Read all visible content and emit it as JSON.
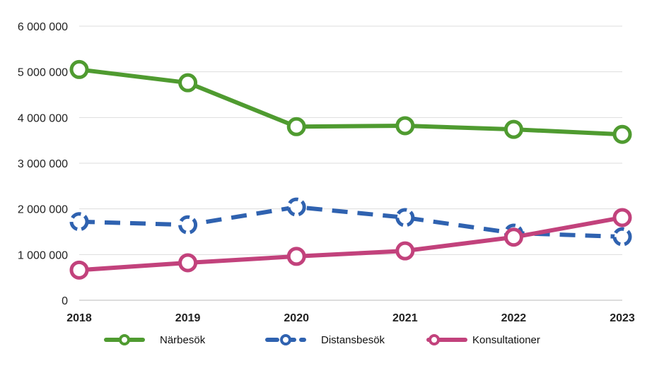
{
  "chart_data": {
    "type": "line",
    "title": "",
    "xlabel": "",
    "ylabel": "",
    "categories": [
      "2018",
      "2019",
      "2020",
      "2021",
      "2022",
      "2023"
    ],
    "ylim": [
      0,
      6000000
    ],
    "yticks": [
      0,
      1000000,
      2000000,
      3000000,
      4000000,
      5000000,
      6000000
    ],
    "ytick_labels": [
      "0",
      "1 000 000",
      "2 000 000",
      "3 000 000",
      "4 000 000",
      "5 000 000",
      "6 000 000"
    ],
    "grid": true,
    "legend_position": "bottom",
    "series": [
      {
        "name": "Närbesök",
        "color": "#4f9b30",
        "dash": "solid",
        "values": [
          5050000,
          4760000,
          3800000,
          3820000,
          3740000,
          3630000
        ]
      },
      {
        "name": "Distansbesök",
        "color": "#2f62b0",
        "dash": "dashed",
        "values": [
          1720000,
          1650000,
          2040000,
          1810000,
          1470000,
          1390000
        ]
      },
      {
        "name": "Konsultationer",
        "color": "#c2427c",
        "dash": "solid",
        "values": [
          660000,
          820000,
          960000,
          1080000,
          1380000,
          1810000
        ]
      }
    ]
  }
}
